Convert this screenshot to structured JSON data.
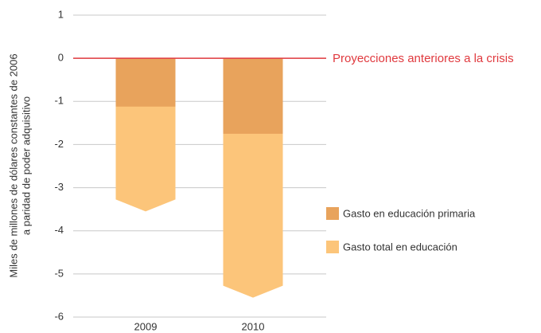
{
  "chart_data": {
    "type": "bar",
    "ylabel": [
      "Miles de millones de dólares constantes de 2006",
      "a paridad de poder adquisitivo"
    ],
    "categories": [
      "2009",
      "2010"
    ],
    "series": [
      {
        "name": "Gasto total en educación",
        "color": "#fcc57a",
        "values": [
          -3.55,
          -5.55
        ]
      },
      {
        "name": "Gasto en educación primaria",
        "color": "#e8a35c",
        "values": [
          -1.12,
          -1.75
        ]
      }
    ],
    "legend_order": [
      1,
      0
    ],
    "annotation": {
      "text": "Proyecciones anteriores a la crisis",
      "value": 0,
      "color": "#e0393e"
    },
    "ylim": [
      -6,
      1
    ],
    "yticks": [
      1,
      0,
      -1,
      -2,
      -3,
      -4,
      -5,
      -6
    ],
    "grid": true
  }
}
